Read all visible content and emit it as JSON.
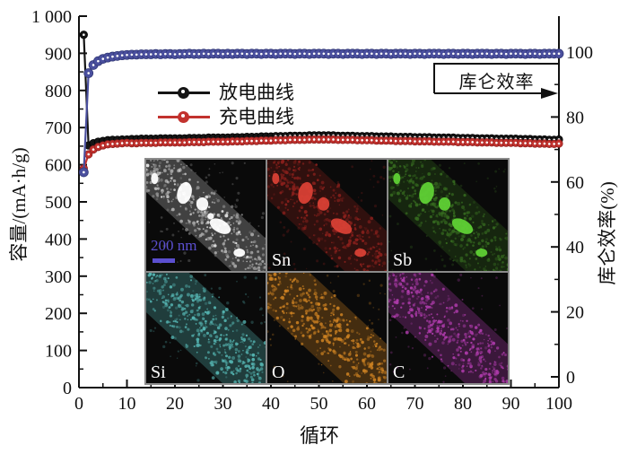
{
  "chart_data": {
    "type": "line",
    "title": "",
    "xlabel": "循环",
    "ylabel_left": "容量/(mA·h/g)",
    "ylabel_right": "库仑效率(%)",
    "xlim": [
      0,
      100
    ],
    "ylim_left": [
      0,
      1000
    ],
    "ylim_right": [
      0,
      100
    ],
    "grid": false,
    "x_ticks": [
      0,
      10,
      20,
      30,
      40,
      50,
      60,
      70,
      80,
      90,
      100
    ],
    "y_ticks_left_labels": [
      "0",
      "100",
      "200",
      "300",
      "400",
      "500",
      "600",
      "700",
      "800",
      "900",
      "1 000"
    ],
    "y_ticks_right": [
      0,
      20,
      40,
      60,
      80,
      100
    ],
    "legend": [
      {
        "label": "放电曲线",
        "color": "#151515"
      },
      {
        "label": "充电曲线",
        "color": "#c2322e"
      }
    ],
    "annotation_box": {
      "label": "库仑效率",
      "arrow": "right"
    },
    "series": [
      {
        "name": "放电曲线",
        "axis": "left",
        "color": "#151515",
        "marker_outline": "#000000",
        "values": [
          950,
          652,
          658,
          662,
          664,
          666,
          667,
          667,
          668,
          668,
          669,
          669,
          670,
          670,
          670,
          670,
          671,
          671,
          671,
          671,
          671,
          671,
          672,
          672,
          672,
          672,
          673,
          673,
          673,
          673,
          673,
          674,
          674,
          674,
          675,
          675,
          675,
          676,
          676,
          676,
          677,
          677,
          677,
          678,
          678,
          678,
          678,
          679,
          679,
          679,
          679,
          679,
          679,
          678,
          678,
          678,
          678,
          677,
          677,
          677,
          677,
          676,
          676,
          676,
          676,
          675,
          675,
          675,
          675,
          674,
          674,
          674,
          674,
          673,
          673,
          673,
          673,
          673,
          672,
          672,
          672,
          672,
          671,
          671,
          671,
          671,
          670,
          670,
          670,
          670,
          670,
          669,
          669,
          669,
          668,
          668,
          668,
          667,
          667,
          668
        ]
      },
      {
        "name": "充电曲线",
        "axis": "left",
        "color": "#c2322e",
        "marker_outline": "#8e1f1e",
        "values": [
          590,
          628,
          641,
          648,
          652,
          655,
          656,
          657,
          658,
          659,
          658,
          658,
          659,
          659,
          659,
          659,
          660,
          660,
          660,
          660,
          660,
          660,
          661,
          661,
          661,
          661,
          662,
          662,
          662,
          662,
          662,
          663,
          663,
          663,
          664,
          664,
          664,
          665,
          665,
          665,
          666,
          666,
          666,
          667,
          667,
          667,
          667,
          668,
          668,
          668,
          668,
          668,
          668,
          667,
          667,
          667,
          667,
          666,
          666,
          666,
          666,
          665,
          665,
          665,
          665,
          664,
          664,
          664,
          664,
          663,
          663,
          663,
          663,
          662,
          662,
          662,
          662,
          662,
          661,
          661,
          661,
          661,
          660,
          660,
          660,
          660,
          659,
          659,
          659,
          659,
          659,
          658,
          658,
          658,
          657,
          657,
          657,
          656,
          656,
          657
        ]
      },
      {
        "name": "库仑效率",
        "axis": "right",
        "color": "#4a4f9e",
        "marker_outline": "#343a78",
        "values": [
          63,
          93.5,
          96,
          97.2,
          97.9,
          98.3,
          98.6,
          98.8,
          99,
          99.1,
          99.2,
          99.2,
          99.3,
          99.3,
          99.3,
          99.4,
          99.3,
          99.4,
          99.4,
          99.3,
          99.4,
          99.4,
          99.5,
          99.4,
          99.4,
          99.5,
          99.4,
          99.5,
          99.5,
          99.4,
          99.5,
          99.4,
          99.5,
          99.5,
          99.4,
          99.5,
          99.5,
          99.4,
          99.5,
          99.5,
          99.4,
          99.5,
          99.5,
          99.5,
          99.4,
          99.5,
          99.5,
          99.4,
          99.5,
          99.5,
          99.5,
          99.4,
          99.5,
          99.5,
          99.4,
          99.5,
          99.5,
          99.5,
          99.4,
          99.5,
          99.5,
          99.4,
          99.5,
          99.5,
          99.4,
          99.5,
          99.5,
          99.5,
          99.4,
          99.5,
          99.5,
          99.4,
          99.5,
          99.5,
          99.5,
          99.4,
          99.5,
          99.5,
          99.4,
          99.5,
          99.5,
          99.4,
          99.5,
          99.5,
          99.5,
          99.4,
          99.5,
          99.5,
          99.4,
          99.5,
          99.5,
          99.5,
          99.4,
          99.5,
          99.5,
          99.4,
          99.5,
          99.5,
          99.5,
          99.5
        ]
      }
    ]
  },
  "inset": {
    "description": "EDS elemental mapping of a nanofiber, 2 rows x 3 columns",
    "label_color": "#ffffff",
    "scalebar_color": "#5b4fd0",
    "panels": [
      {
        "id": "tem",
        "label": "",
        "scalebar_label": "200 nm",
        "speckle_color": "#a8a8a8",
        "bright_color": "#e8e8e8",
        "blob_color": "#ffffff",
        "has_blobs": true
      },
      {
        "id": "sn",
        "label": "Sn",
        "speckle_color": "#8a201c",
        "blob_color": "#d84035",
        "has_blobs": true
      },
      {
        "id": "sb",
        "label": "Sb",
        "speckle_color": "#35691f",
        "blob_color": "#5fd035",
        "has_blobs": true
      },
      {
        "id": "si",
        "label": "Si",
        "speckle_color": "#55b5b2",
        "has_blobs": false
      },
      {
        "id": "o",
        "label": "O",
        "speckle_color": "#cc8122",
        "has_blobs": false
      },
      {
        "id": "c",
        "label": "C",
        "speckle_color": "#b13cae",
        "has_blobs": false
      }
    ]
  }
}
